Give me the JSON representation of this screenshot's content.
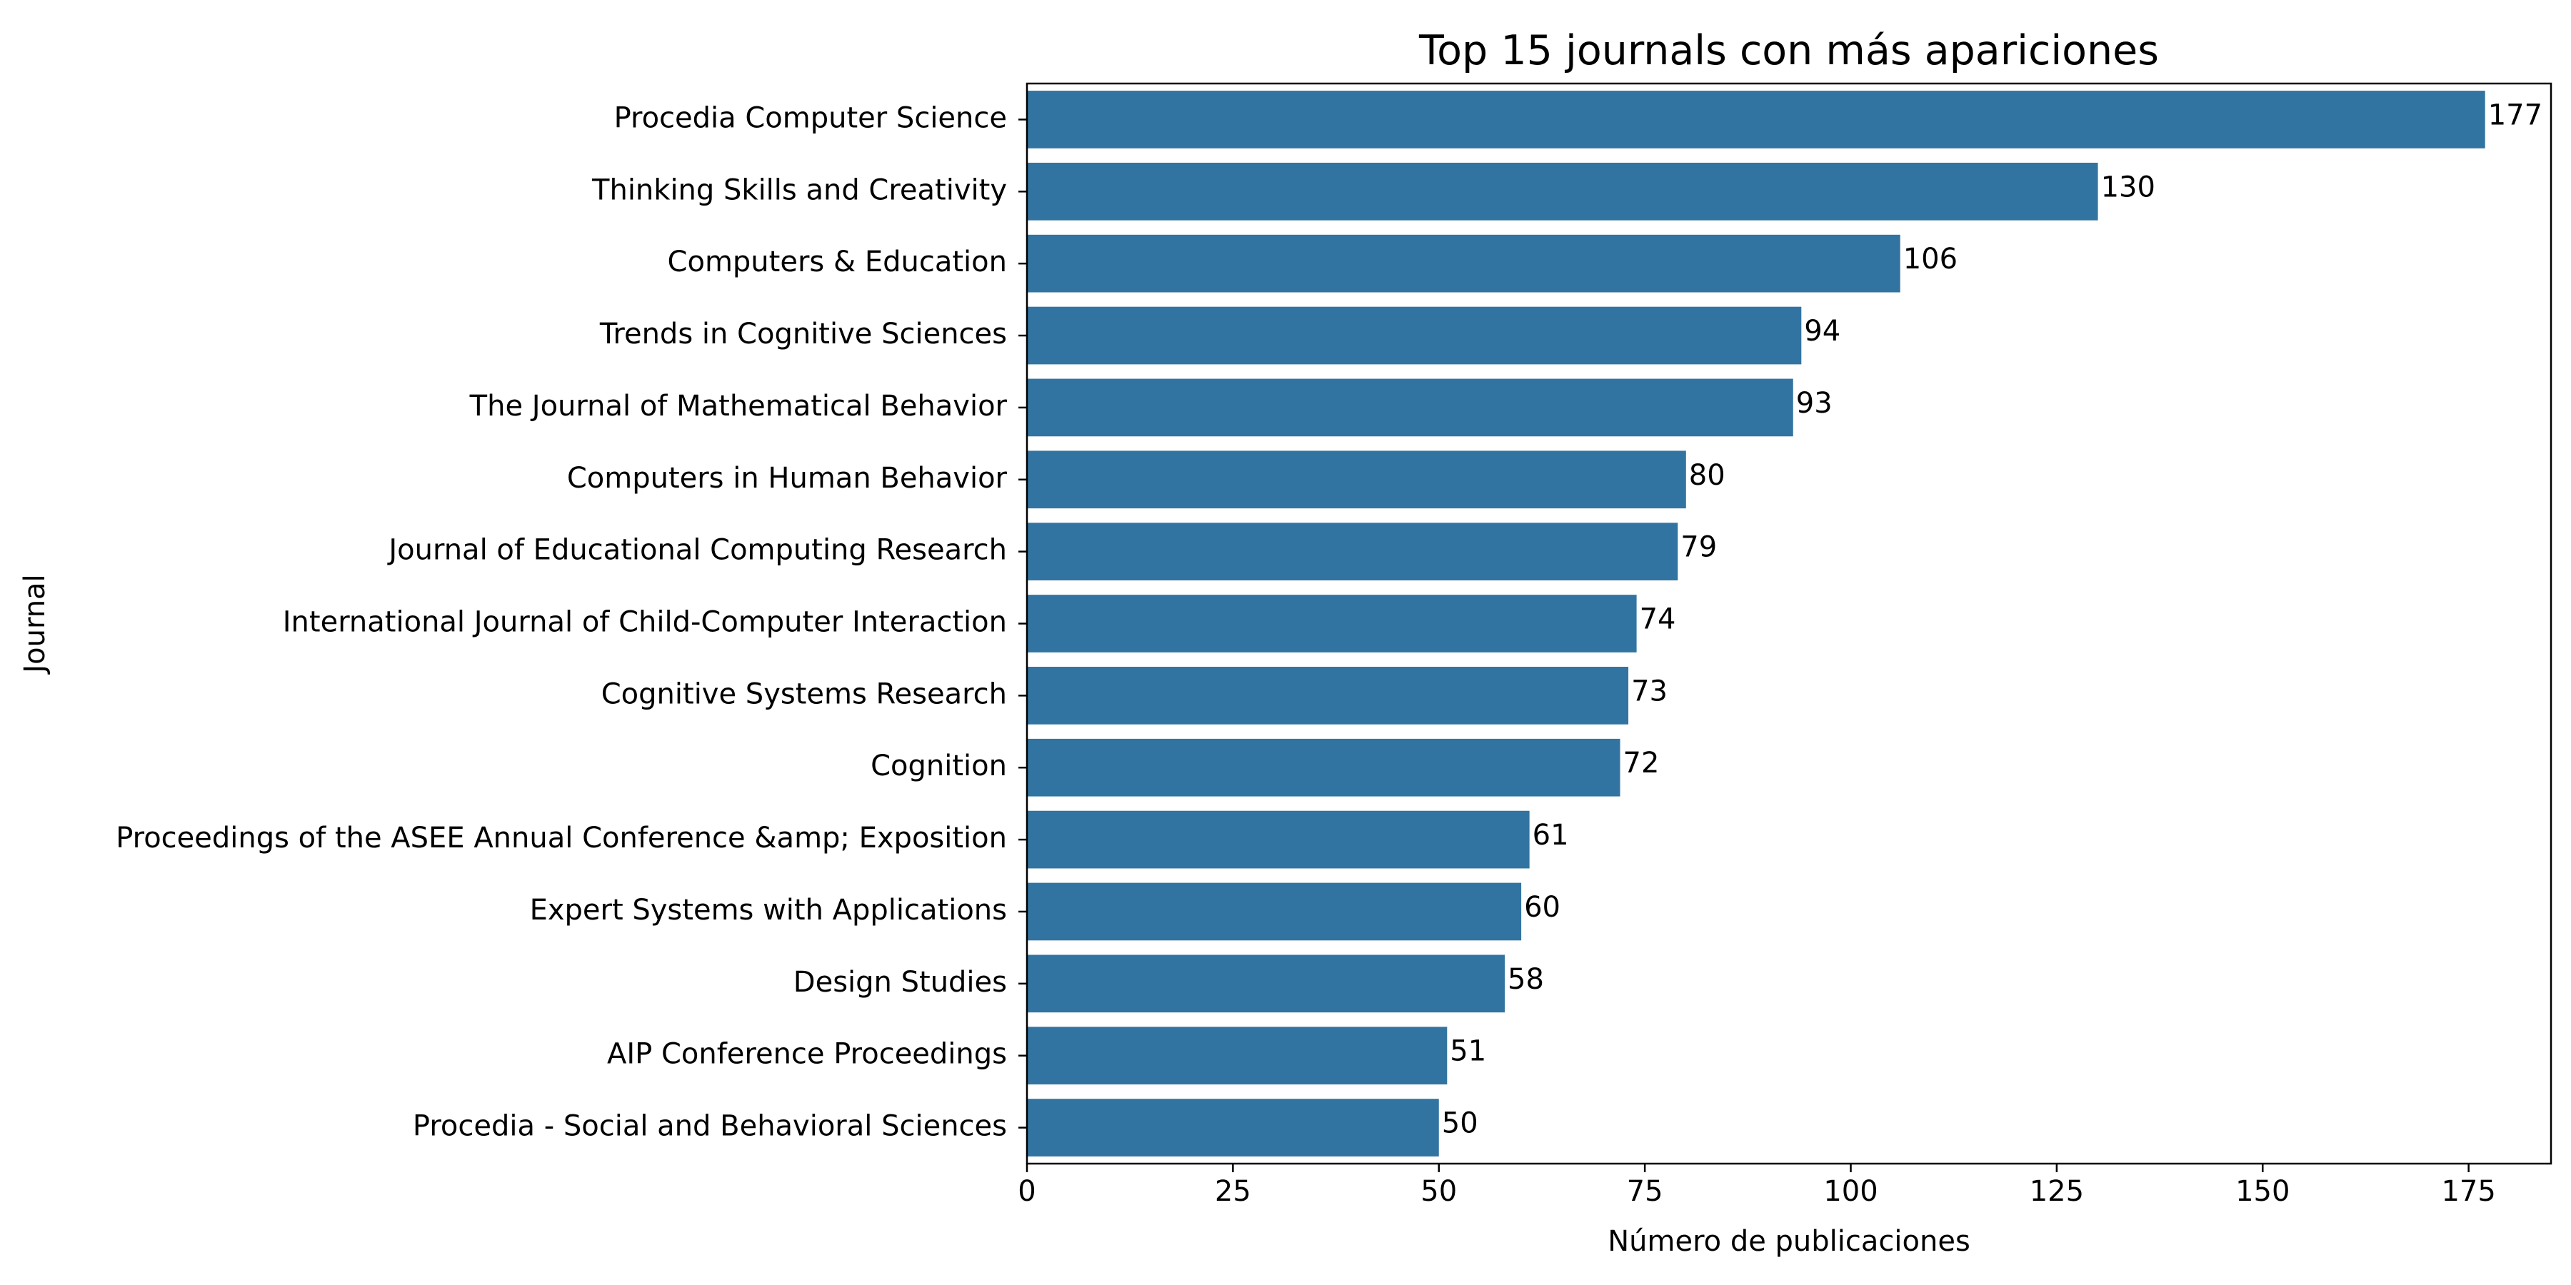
{
  "chart_data": {
    "type": "bar",
    "orientation": "horizontal",
    "title": "Top 15 journals con más apariciones",
    "xlabel": "Número de publicaciones",
    "ylabel": "Journal",
    "xlim": [
      0,
      185
    ],
    "xticks": [
      0,
      25,
      50,
      75,
      100,
      125,
      150,
      175
    ],
    "grid": false,
    "bar_color": "#3274a1",
    "categories": [
      "Procedia Computer Science",
      "Thinking Skills and Creativity",
      "Computers & Education",
      "Trends in Cognitive Sciences",
      "The Journal of Mathematical Behavior",
      "Computers in Human Behavior",
      "Journal of Educational Computing Research",
      "International Journal of Child-Computer Interaction",
      "Cognitive Systems Research",
      "Cognition",
      "Proceedings of the ASEE Annual Conference &amp; Exposition",
      "Expert Systems with Applications",
      "Design Studies",
      "AIP Conference Proceedings",
      "Procedia - Social and Behavioral Sciences"
    ],
    "values": [
      177,
      130,
      106,
      94,
      93,
      80,
      79,
      74,
      73,
      72,
      61,
      60,
      58,
      51,
      50
    ],
    "data_labels": [
      "177",
      "130",
      "106",
      "94",
      "93",
      "80",
      "79",
      "74",
      "73",
      "72",
      "61",
      "60",
      "58",
      "51",
      "50"
    ]
  }
}
